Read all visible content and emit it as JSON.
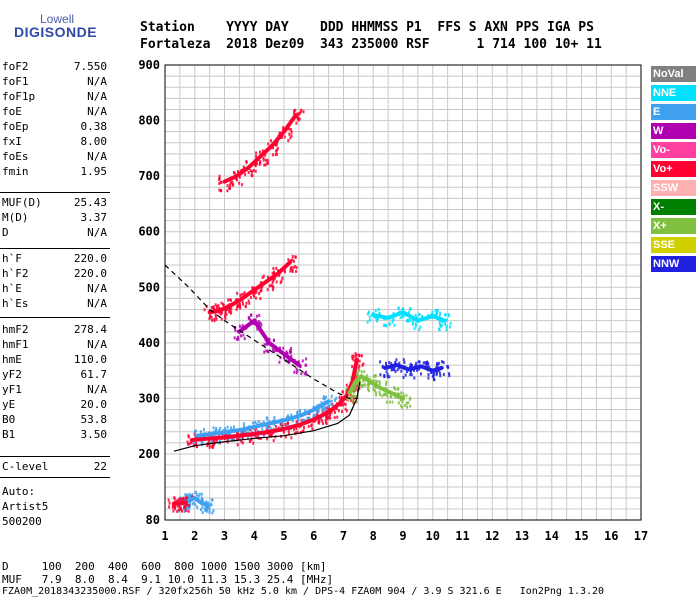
{
  "logo": {
    "top": "Lowell",
    "main": "DIGISONDE"
  },
  "header": {
    "row1": "Station    YYYY DAY    DDD HHMMSS P1  FFS S AXN PPS IGA PS",
    "row2": "Fortaleza  2018 Dez09  343 235000 RSF      1 714 100 10+ 11"
  },
  "params_group1": [
    {
      "name": "foF2",
      "value": "7.550"
    },
    {
      "name": "foF1",
      "value": "N/A"
    },
    {
      "name": "foF1p",
      "value": "N/A"
    },
    {
      "name": "foE",
      "value": "N/A"
    },
    {
      "name": "foEp",
      "value": "0.38"
    },
    {
      "name": "fxI",
      "value": "8.00"
    },
    {
      "name": "foEs",
      "value": "N/A"
    },
    {
      "name": "fmin",
      "value": "1.95"
    }
  ],
  "params_group2": [
    {
      "name": "MUF(D)",
      "value": "25.43"
    },
    {
      "name": "M(D)",
      "value": "3.37"
    },
    {
      "name": "D",
      "value": "N/A"
    }
  ],
  "params_group3": [
    {
      "name": "h`F",
      "value": "220.0"
    },
    {
      "name": "h`F2",
      "value": "220.0"
    },
    {
      "name": "h`E",
      "value": "N/A"
    },
    {
      "name": "h`Es",
      "value": "N/A"
    }
  ],
  "params_group4": [
    {
      "name": "hmF2",
      "value": "278.4"
    },
    {
      "name": "hmF1",
      "value": "N/A"
    },
    {
      "name": "hmE",
      "value": "110.0"
    },
    {
      "name": "yF2",
      "value": "61.7"
    },
    {
      "name": "yF1",
      "value": "N/A"
    },
    {
      "name": "yE",
      "value": "20.0"
    },
    {
      "name": "B0",
      "value": "53.8"
    },
    {
      "name": "B1",
      "value": "3.50"
    }
  ],
  "params_group5": [
    {
      "name": "C-level",
      "value": "22"
    }
  ],
  "auto": [
    "Auto:",
    "Artist5",
    "500200"
  ],
  "legend": [
    {
      "label": "NoVal",
      "color": "#808080"
    },
    {
      "label": "NNE",
      "color": "#00e0ff"
    },
    {
      "label": "E",
      "color": "#40a0f0"
    },
    {
      "label": "W",
      "color": "#b000b0"
    },
    {
      "label": "Vo-",
      "color": "#ff40a0"
    },
    {
      "label": "Vo+",
      "color": "#ff0030"
    },
    {
      "label": "SSW",
      "color": "#ffb0b0"
    },
    {
      "label": "X-",
      "color": "#008000"
    },
    {
      "label": "X+",
      "color": "#80c040"
    },
    {
      "label": "SSE",
      "color": "#d0d000"
    },
    {
      "label": "NNW",
      "color": "#2020e0"
    }
  ],
  "footer": {
    "d_row": "D     100  200  400  600  800 1000 1500 3000 [km]",
    "muf_row": "MUF   7.9  8.0  8.4  9.1 10.0 11.3 15.3 25.4 [MHz]",
    "info_row": "FZA0M_2018343235000.RSF / 320fx256h 50 kHz 5.0 km / DPS-4 FZA0M 904 / 3.9 S 321.6 E   Ion2Png 1.3.20"
  },
  "chart_data": {
    "type": "scatter",
    "xlim": [
      1,
      17
    ],
    "ylim": [
      80,
      900
    ],
    "x_ticks": [
      "1",
      "2",
      "3",
      "4",
      "5",
      "6",
      "7",
      "8",
      "9",
      "10",
      "11",
      "12",
      "13",
      "14",
      "15",
      "16",
      "17"
    ],
    "y_ticks": [
      "80",
      "200",
      "300",
      "400",
      "500",
      "600",
      "700",
      "800",
      "900"
    ],
    "grid": true,
    "profile_curve": {
      "x": [
        1.3,
        2.0,
        3.0,
        4.0,
        5.0,
        6.0,
        6.8,
        7.2,
        7.45,
        7.55
      ],
      "y": [
        205,
        215,
        222,
        228,
        233,
        242,
        255,
        270,
        300,
        330
      ]
    },
    "trace_curve": {
      "x": [
        1.0,
        1.8,
        2.5,
        3.0,
        4.0,
        5.0,
        6.0,
        6.8,
        7.2,
        7.5
      ],
      "y": [
        540,
        500,
        460,
        440,
        405,
        370,
        335,
        310,
        300,
        300
      ]
    },
    "traces": [
      {
        "name": "F2 O-trace",
        "color": "#ff0030",
        "x": [
          1.9,
          2.5,
          3.0,
          3.5,
          4.0,
          4.5,
          5.0,
          5.5,
          6.0,
          6.3,
          6.6,
          6.9,
          7.1,
          7.3,
          7.45
        ],
        "y": [
          225,
          228,
          230,
          233,
          236,
          240,
          245,
          252,
          262,
          270,
          280,
          292,
          305,
          330,
          370
        ]
      },
      {
        "name": "F2 O-trace E",
        "color": "#40a0f0",
        "x": [
          2.1,
          2.6,
          3.1,
          3.6,
          4.1,
          4.6,
          5.1,
          5.6,
          6.1,
          6.5
        ],
        "y": [
          233,
          236,
          240,
          244,
          250,
          256,
          262,
          270,
          282,
          295
        ]
      },
      {
        "name": "2F trace",
        "color": "#ff0030",
        "x": [
          2.5,
          2.8,
          3.0,
          3.3,
          3.6,
          4.0,
          4.4,
          4.8,
          5.2
        ],
        "y": [
          455,
          458,
          462,
          470,
          480,
          495,
          510,
          525,
          545
        ]
      },
      {
        "name": "3F trace",
        "color": "#ff0030",
        "x": [
          3.0,
          3.4,
          3.8,
          4.2,
          4.6,
          5.0,
          5.4
        ],
        "y": [
          690,
          700,
          715,
          735,
          755,
          780,
          810
        ]
      },
      {
        "name": "X trace",
        "color": "#80c040",
        "x": [
          7.2,
          7.4,
          7.6,
          7.9,
          8.2,
          8.6,
          9.0
        ],
        "y": [
          310,
          330,
          340,
          330,
          320,
          310,
          300
        ]
      },
      {
        "name": "NNW echoes",
        "color": "#2020e0",
        "x": [
          8.4,
          8.8,
          9.2,
          9.6,
          10.0,
          10.3
        ],
        "y": [
          355,
          360,
          352,
          358,
          350,
          355
        ]
      },
      {
        "name": "NNE echoes",
        "color": "#00e0ff",
        "x": [
          8.0,
          8.5,
          9.0,
          9.5,
          10.0,
          10.4
        ],
        "y": [
          450,
          445,
          455,
          440,
          448,
          440
        ]
      },
      {
        "name": "W echoes",
        "color": "#b000b0",
        "x": [
          3.5,
          4.0,
          4.5,
          5.0,
          5.5
        ],
        "y": [
          420,
          440,
          400,
          380,
          360
        ]
      },
      {
        "name": "E layer echoes",
        "color": "#40a0f0",
        "x": [
          1.6,
          1.8,
          2.0,
          2.2,
          2.4
        ],
        "y": [
          110,
          115,
          120,
          112,
          108
        ]
      },
      {
        "name": "Lower Vo+",
        "color": "#ff0030",
        "x": [
          1.3,
          1.5,
          1.7
        ],
        "y": [
          110,
          110,
          112
        ]
      }
    ]
  }
}
